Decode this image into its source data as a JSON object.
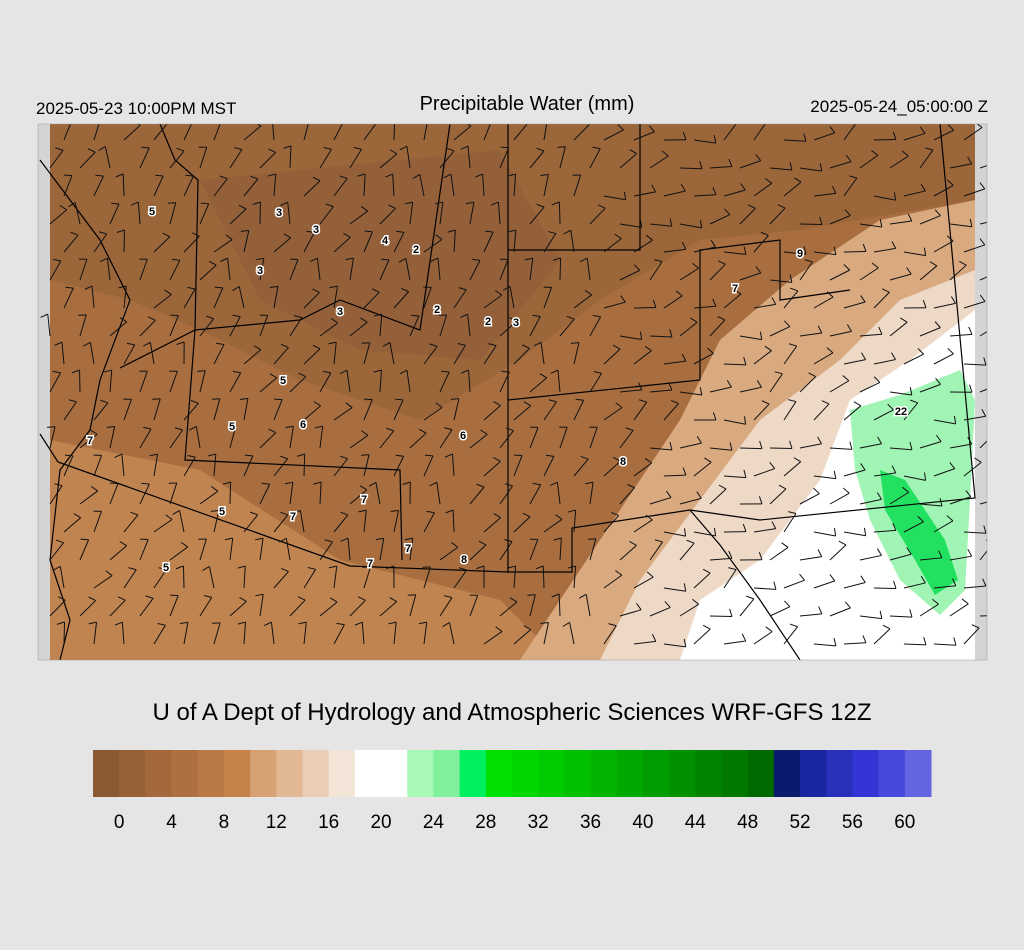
{
  "header": {
    "left": "2025-05-23 10:00PM MST",
    "title": "Precipitable Water (mm)",
    "right": "2025-05-24_05:00:00 Z"
  },
  "map": {
    "labels": [
      5,
      3,
      3,
      4,
      2,
      3,
      3,
      2,
      2,
      3,
      5,
      5,
      6,
      6,
      7,
      8,
      7,
      5,
      7,
      7,
      8,
      7,
      5,
      9,
      7,
      22
    ]
  },
  "credit": "U of A Dept of Hydrology and Atmospheric Sciences WRF-GFS 12Z",
  "colorbar": {
    "range": [
      -2,
      62
    ],
    "ticks": [
      0,
      4,
      8,
      12,
      16,
      20,
      24,
      28,
      32,
      36,
      40,
      44,
      48,
      52,
      56,
      60
    ],
    "colors": [
      "#8b5a33",
      "#976138",
      "#a3693c",
      "#ae7040",
      "#ba7844",
      "#c68249",
      "#d7a273",
      "#e1b794",
      "#e9cdb6",
      "#f3e4d8",
      "#ffffff",
      "#ffffff",
      "#a8f8b8",
      "#80f09a",
      "#00f060",
      "#00e000",
      "#00d800",
      "#00cc00",
      "#00c000",
      "#00b400",
      "#00a800",
      "#009c00",
      "#009000",
      "#008400",
      "#007800",
      "#006a00",
      "#0a1a6c",
      "#1a26a0",
      "#2830bc",
      "#3434d4",
      "#4848dc",
      "#6464e0"
    ]
  }
}
